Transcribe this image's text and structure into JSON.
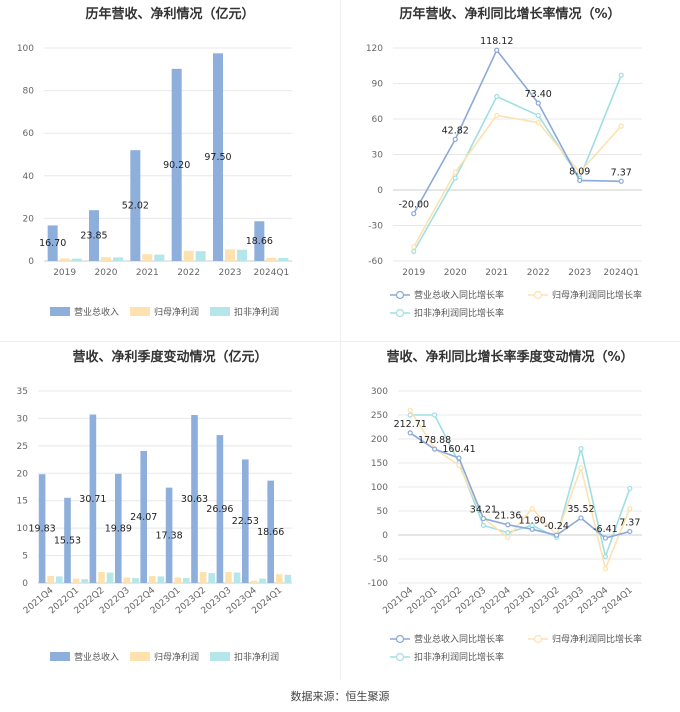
{
  "source_text": "数据来源：恒生聚源",
  "chart_data": [
    {
      "type": "bar",
      "title": "历年营收、净利情况（亿元）",
      "categories": [
        "2019",
        "2020",
        "2021",
        "2022",
        "2023",
        "2024Q1"
      ],
      "ylim": [
        0,
        100
      ],
      "yticks": [
        0,
        20,
        40,
        60,
        80,
        100
      ],
      "series": [
        {
          "name": "营业总收入",
          "color": "#8eaedb",
          "values": [
            16.7,
            23.85,
            52.02,
            90.2,
            97.5,
            18.66
          ],
          "labels": [
            "16.70",
            "23.85",
            "52.02",
            "90.20",
            "97.50",
            "18.66"
          ]
        },
        {
          "name": "归母净利润",
          "color": "#fde2b0",
          "values": [
            1.2,
            1.8,
            3.2,
            4.8,
            5.5,
            1.5
          ]
        },
        {
          "name": "扣非净利润",
          "color": "#b4e6ea",
          "values": [
            1.1,
            1.7,
            3.0,
            4.6,
            5.3,
            1.4
          ]
        }
      ]
    },
    {
      "type": "line",
      "title": "历年营收、净利同比增长率情况（%）",
      "categories": [
        "2019",
        "2020",
        "2021",
        "2022",
        "2023",
        "2024Q1"
      ],
      "ylim": [
        -60,
        120
      ],
      "yticks": [
        -60,
        -30,
        0,
        30,
        60,
        90,
        120
      ],
      "series": [
        {
          "name": "营业总收入同比增长率",
          "color": "#8aa9d8",
          "values": [
            -20.0,
            42.82,
            118.12,
            73.4,
            8.09,
            7.37
          ],
          "labels": [
            "-20.00",
            "42.82",
            "118.12",
            "73.40",
            "8.09",
            "7.37"
          ]
        },
        {
          "name": "归母净利润同比增长率",
          "color": "#fde2b0",
          "values": [
            -48,
            15,
            63,
            57,
            15,
            54
          ]
        },
        {
          "name": "扣非净利润同比增长率",
          "color": "#9fdfe4",
          "values": [
            -52,
            10,
            79,
            63,
            10,
            97
          ]
        }
      ]
    },
    {
      "type": "bar",
      "title": "营收、净利季度变动情况（亿元）",
      "categories": [
        "2021Q4",
        "2022Q1",
        "2022Q2",
        "2022Q3",
        "2022Q4",
        "2023Q1",
        "2023Q2",
        "2023Q3",
        "2023Q4",
        "2024Q1"
      ],
      "ylim": [
        0,
        35
      ],
      "yticks": [
        0,
        5,
        10,
        15,
        20,
        25,
        30,
        35
      ],
      "series": [
        {
          "name": "营业总收入",
          "color": "#8eaedb",
          "values": [
            19.83,
            15.53,
            30.71,
            19.89,
            24.07,
            17.38,
            30.63,
            26.96,
            22.53,
            18.66
          ],
          "labels": [
            "19.83",
            "15.53",
            "30.71",
            "19.89",
            "24.07",
            "17.38",
            "30.63",
            "26.96",
            "22.53",
            "18.66"
          ]
        },
        {
          "name": "归母净利润",
          "color": "#fde2b0",
          "values": [
            1.3,
            0.8,
            2.0,
            1.0,
            1.3,
            1.0,
            2.0,
            2.0,
            0.4,
            1.6
          ]
        },
        {
          "name": "扣非净利润",
          "color": "#b4e6ea",
          "values": [
            1.2,
            0.7,
            1.9,
            0.9,
            1.2,
            0.9,
            1.8,
            1.9,
            0.8,
            1.5
          ]
        }
      ]
    },
    {
      "type": "line",
      "title": "营收、净利同比增长率季度变动情况（%）",
      "categories": [
        "2021Q4",
        "2022Q1",
        "2022Q2",
        "2022Q3",
        "2022Q4",
        "2023Q1",
        "2023Q2",
        "2023Q3",
        "2023Q4",
        "2024Q1"
      ],
      "ylim": [
        -100,
        300
      ],
      "yticks": [
        -100,
        -50,
        0,
        50,
        100,
        150,
        200,
        250,
        300
      ],
      "series": [
        {
          "name": "营业总收入同比增长率",
          "color": "#8aa9d8",
          "values": [
            212.71,
            178.88,
            160.41,
            34.21,
            21.36,
            11.9,
            -0.24,
            35.52,
            -6.41,
            7.37
          ],
          "labels": [
            "212.71",
            "178.88",
            "160.41",
            "34.21",
            "21.36",
            "11.90",
            "-0.24",
            "35.52",
            "-6.41",
            "7.37"
          ]
        },
        {
          "name": "归母净利润同比增长率",
          "color": "#fde2b0",
          "values": [
            260,
            180,
            145,
            35,
            -5,
            55,
            0,
            140,
            -70,
            55
          ]
        },
        {
          "name": "扣非净利润同比增长率",
          "color": "#9fdfe4",
          "values": [
            250,
            250,
            150,
            20,
            5,
            20,
            -5,
            180,
            -45,
            97
          ]
        }
      ]
    }
  ]
}
